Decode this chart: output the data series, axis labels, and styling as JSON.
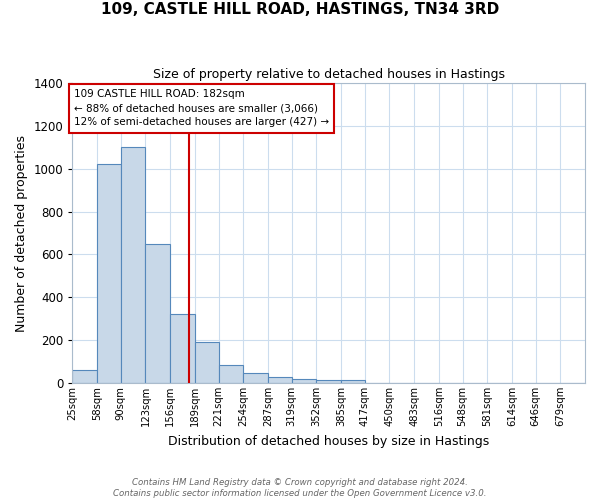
{
  "title": "109, CASTLE HILL ROAD, HASTINGS, TN34 3RD",
  "subtitle": "Size of property relative to detached houses in Hastings",
  "xlabel": "Distribution of detached houses by size in Hastings",
  "ylabel": "Number of detached properties",
  "bin_labels": [
    "25sqm",
    "58sqm",
    "90sqm",
    "123sqm",
    "156sqm",
    "189sqm",
    "221sqm",
    "254sqm",
    "287sqm",
    "319sqm",
    "352sqm",
    "385sqm",
    "417sqm",
    "450sqm",
    "483sqm",
    "516sqm",
    "548sqm",
    "581sqm",
    "614sqm",
    "646sqm",
    "679sqm"
  ],
  "bin_edges": [
    25,
    58,
    90,
    123,
    156,
    189,
    221,
    254,
    287,
    319,
    352,
    385,
    417,
    450,
    483,
    516,
    548,
    581,
    614,
    646,
    679,
    712
  ],
  "bar_heights": [
    60,
    1020,
    1100,
    650,
    320,
    190,
    85,
    45,
    30,
    20,
    15,
    12,
    0,
    0,
    0,
    0,
    0,
    0,
    0,
    0,
    0
  ],
  "bar_color": "#c8d8e8",
  "bar_edge_color": "#5588bb",
  "property_line_x": 182,
  "property_line_color": "#cc0000",
  "annotation_line1": "109 CASTLE HILL ROAD: 182sqm",
  "annotation_line2": "← 88% of detached houses are smaller (3,066)",
  "annotation_line3": "12% of semi-detached houses are larger (427) →",
  "annotation_box_color": "#cc0000",
  "ylim": [
    0,
    1400
  ],
  "yticks": [
    0,
    200,
    400,
    600,
    800,
    1000,
    1200,
    1400
  ],
  "footer_line1": "Contains HM Land Registry data © Crown copyright and database right 2024.",
  "footer_line2": "Contains public sector information licensed under the Open Government Licence v3.0.",
  "bg_color": "#ffffff",
  "grid_color": "#ccddee",
  "title_fontsize": 11,
  "subtitle_fontsize": 9,
  "xlabel_fontsize": 9,
  "ylabel_fontsize": 9
}
